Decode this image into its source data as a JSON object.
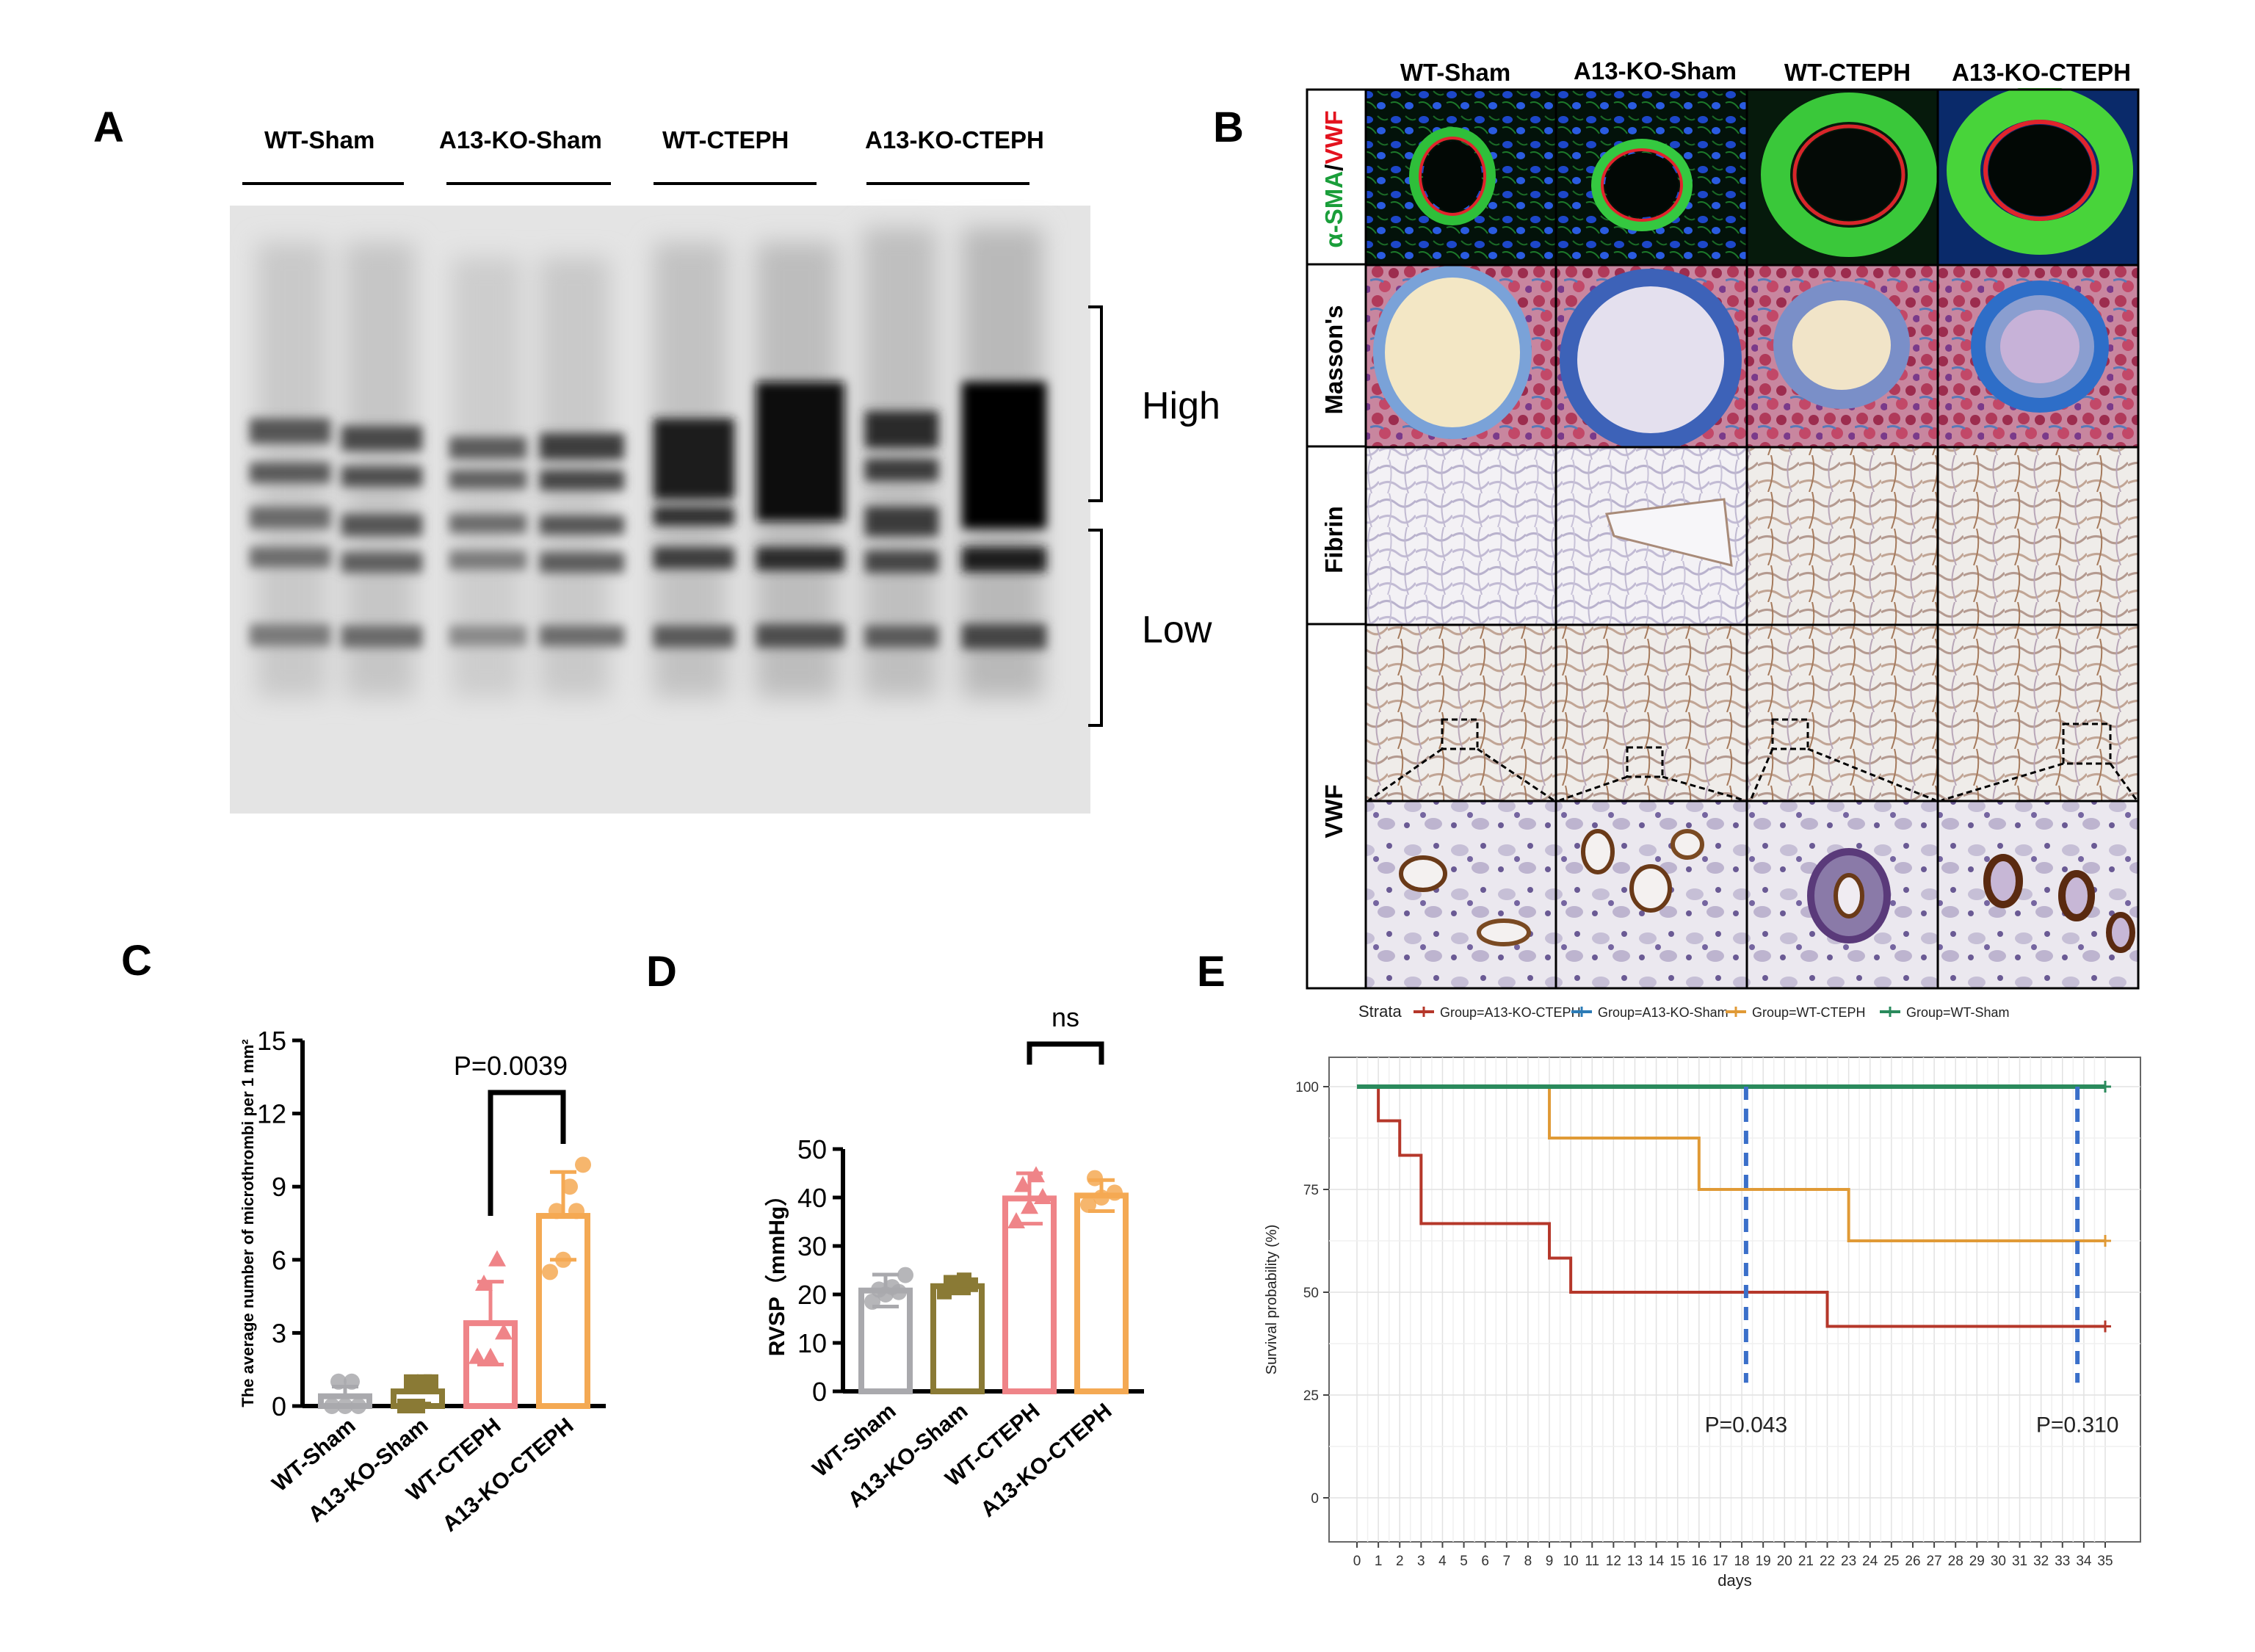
{
  "panels": {
    "A": {
      "letter": "A",
      "groups": [
        "WT-Sham",
        "A13-KO-Sham",
        "WT-CTEPH",
        "A13-KO-CTEPH"
      ],
      "brackets": [
        "High",
        "Low"
      ]
    },
    "B": {
      "letter": "B",
      "columns": [
        "WT-Sham",
        "A13-KO-Sham",
        "WT-CTEPH",
        "A13-KO-CTEPH"
      ],
      "rows": [
        "α-SMA/VWF",
        "Masson's",
        "Fibrin",
        "VWF"
      ],
      "row_label_sma": "α-SMA",
      "row_label_sep": "/",
      "row_label_vwf": "VWF",
      "colors": {
        "sma": "#1a9e3a",
        "vwf": "#e3121e"
      }
    },
    "C": {
      "letter": "C"
    },
    "D": {
      "letter": "D"
    },
    "E": {
      "letter": "E"
    }
  },
  "chart_data": [
    {
      "id": "C",
      "type": "bar",
      "ylabel": "The average number of microthrombi per 1 mm²",
      "ylim": [
        0,
        15
      ],
      "yticks": [
        "0",
        "3",
        "6",
        "9",
        "12",
        "15"
      ],
      "categories": [
        "WT-Sham",
        "A13-KO-Sham",
        "WT-CTEPH",
        "A13-KO-CTEPH"
      ],
      "values": [
        0.4,
        0.6,
        3.4,
        7.8
      ],
      "error": [
        0.4,
        0.5,
        1.7,
        1.8
      ],
      "points": [
        [
          0,
          0,
          0,
          1,
          1
        ],
        [
          0,
          0,
          1,
          1,
          1
        ],
        [
          2,
          2,
          3,
          5,
          6
        ],
        [
          5.5,
          6,
          8,
          8,
          9,
          9.9
        ]
      ],
      "markers": [
        "circle",
        "square",
        "triangle",
        "circle"
      ],
      "colors": [
        "#a9a9ad",
        "#8a7a35",
        "#ef8488",
        "#f4a953"
      ],
      "annotation": "P=0.0039"
    },
    {
      "id": "D",
      "type": "bar",
      "ylabel": "RVSP（mmHg）",
      "ylim": [
        0,
        50
      ],
      "yticks": [
        "0",
        "10",
        "20",
        "30",
        "40",
        "50"
      ],
      "categories": [
        "WT-Sham",
        "A13-KO-Sham",
        "WT-CTEPH",
        "A13-KO-CTEPH"
      ],
      "values": [
        20.8,
        21.7,
        39.8,
        40.4
      ],
      "error": [
        3.3,
        1.5,
        5.2,
        3.2
      ],
      "points": [
        [
          18.5,
          20,
          20.5,
          21,
          21.5,
          24
        ],
        [
          20.5,
          21.5,
          22,
          22.5,
          23
        ],
        [
          35,
          38,
          40,
          42.5,
          44.5
        ],
        [
          38.5,
          40,
          41,
          44
        ]
      ],
      "markers": [
        "circle",
        "square",
        "triangle",
        "circle"
      ],
      "colors": [
        "#a9a9ad",
        "#8a7a35",
        "#ef8488",
        "#f4a953"
      ],
      "annotation": "ns"
    },
    {
      "id": "E",
      "type": "line",
      "legend_title": "Strata",
      "legend_position": "top",
      "xlabel": "days",
      "ylabel": "Survival probability (%)",
      "xlim": [
        0,
        35
      ],
      "ylim": [
        0,
        100
      ],
      "xticks": [
        "0",
        "1",
        "2",
        "3",
        "4",
        "5",
        "6",
        "7",
        "8",
        "9",
        "10",
        "11",
        "12",
        "13",
        "14",
        "15",
        "16",
        "17",
        "18",
        "19",
        "20",
        "21",
        "22",
        "23",
        "24",
        "25",
        "26",
        "27",
        "28",
        "29",
        "30",
        "31",
        "32",
        "33",
        "34",
        "35"
      ],
      "yticks": [
        "0",
        "25",
        "50",
        "75",
        "100"
      ],
      "series": [
        {
          "name": "Group=A13-KO-CTEPH",
          "color": "#b5372a",
          "steps": [
            [
              0,
              100
            ],
            [
              1,
              91.7
            ],
            [
              2,
              83.3
            ],
            [
              3,
              66.7
            ],
            [
              9,
              58.3
            ],
            [
              10,
              50
            ],
            [
              22,
              41.7
            ],
            [
              35,
              41.7
            ]
          ]
        },
        {
          "name": "Group=A13-KO-Sham",
          "color": "#2c7bb6",
          "steps": [
            [
              0,
              100
            ],
            [
              35,
              100
            ]
          ]
        },
        {
          "name": "Group=WT-CTEPH",
          "color": "#e09a36",
          "steps": [
            [
              0,
              100
            ],
            [
              9,
              87.5
            ],
            [
              16,
              75
            ],
            [
              23,
              62.5
            ],
            [
              35,
              62.5
            ]
          ]
        },
        {
          "name": "Group=WT-Sham",
          "color": "#2a8a5c",
          "steps": [
            [
              0,
              100
            ],
            [
              35,
              100
            ]
          ]
        }
      ],
      "vlines": [
        18.2,
        33.7
      ],
      "annotations": [
        {
          "label": "P=0.043",
          "x": 18.2
        },
        {
          "label": "P=0.310",
          "x": 33.7
        }
      ]
    }
  ]
}
